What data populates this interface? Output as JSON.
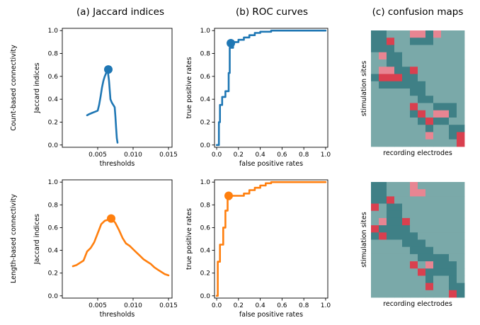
{
  "figure": {
    "column_titles": [
      "(a) Jaccard indices",
      "(b) ROC curves",
      "(c) confusion maps"
    ],
    "row_labels": [
      "Count-based connectivity",
      "Length-based connectivity"
    ],
    "colors": {
      "count": "#1f77b4",
      "length": "#ff7f0e",
      "cm_background": "#7aa9a9",
      "cm_dark": "#3f8086",
      "cm_pink": "#e88592",
      "cm_red": "#d9404f"
    }
  },
  "chart_data": [
    {
      "id": "jaccard-count",
      "type": "line",
      "title": "",
      "xlabel": "thresholds",
      "ylabel": "Jaccard indices",
      "xlim": [
        0.0,
        0.0155
      ],
      "ylim": [
        -0.02,
        1.02
      ],
      "xticks": [
        0.005,
        0.01,
        0.015
      ],
      "xtick_labels": [
        "0.005",
        "0.010",
        "0.015"
      ],
      "yticks": [
        0.0,
        0.2,
        0.4,
        0.6,
        0.8,
        1.0
      ],
      "ytick_labels": [
        "0.0",
        "0.2",
        "0.4",
        "0.6",
        "0.8",
        "1.0"
      ],
      "color": "#1f77b4",
      "series": [
        {
          "x": [
            0.0035,
            0.0038,
            0.0042,
            0.0046,
            0.005,
            0.0052,
            0.0054,
            0.0056,
            0.0058,
            0.006,
            0.0062,
            0.0064,
            0.0066,
            0.0068,
            0.007,
            0.0071,
            0.0072,
            0.0073,
            0.0074,
            0.0075,
            0.0076,
            0.0077,
            0.0078
          ],
          "y": [
            0.26,
            0.27,
            0.28,
            0.29,
            0.3,
            0.35,
            0.42,
            0.5,
            0.56,
            0.6,
            0.63,
            0.66,
            0.56,
            0.4,
            0.37,
            0.36,
            0.35,
            0.34,
            0.33,
            0.25,
            0.15,
            0.06,
            0.02
          ]
        }
      ],
      "highlight": {
        "x": 0.0065,
        "y": 0.66
      }
    },
    {
      "id": "roc-count",
      "type": "line",
      "title": "",
      "xlabel": "false positive rates",
      "ylabel": "true positive rates",
      "xlim": [
        -0.02,
        1.02
      ],
      "ylim": [
        -0.02,
        1.02
      ],
      "xticks": [
        0.0,
        0.2,
        0.4,
        0.6,
        0.8,
        1.0
      ],
      "xtick_labels": [
        "0.0",
        "0.2",
        "0.4",
        "0.6",
        "0.8",
        "1.0"
      ],
      "yticks": [
        0.0,
        0.2,
        0.4,
        0.6,
        0.8,
        1.0
      ],
      "ytick_labels": [
        "0.0",
        "0.2",
        "0.4",
        "0.6",
        "0.8",
        "1.0"
      ],
      "color": "#1f77b4",
      "series": [
        {
          "x": [
            0.0,
            0.02,
            0.02,
            0.03,
            0.03,
            0.05,
            0.05,
            0.08,
            0.08,
            0.11,
            0.11,
            0.12,
            0.12,
            0.15,
            0.15,
            0.2,
            0.2,
            0.25,
            0.25,
            0.3,
            0.3,
            0.35,
            0.35,
            0.4,
            0.4,
            0.5,
            0.5,
            1.0
          ],
          "y": [
            0.0,
            0.0,
            0.2,
            0.2,
            0.35,
            0.35,
            0.42,
            0.42,
            0.47,
            0.47,
            0.63,
            0.63,
            0.85,
            0.85,
            0.9,
            0.9,
            0.92,
            0.92,
            0.94,
            0.94,
            0.96,
            0.96,
            0.98,
            0.98,
            0.99,
            0.99,
            1.0,
            1.0
          ]
        }
      ],
      "highlight": {
        "x": 0.13,
        "y": 0.89
      }
    },
    {
      "id": "jaccard-length",
      "type": "line",
      "title": "",
      "xlabel": "thresholds",
      "ylabel": "Jaccard indices",
      "xlim": [
        0.0,
        0.0155
      ],
      "ylim": [
        -0.02,
        1.02
      ],
      "xticks": [
        0.005,
        0.01,
        0.015
      ],
      "xtick_labels": [
        "0.005",
        "0.010",
        "0.015"
      ],
      "yticks": [
        0.0,
        0.2,
        0.4,
        0.6,
        0.8,
        1.0
      ],
      "ytick_labels": [
        "0.0",
        "0.2",
        "0.4",
        "0.6",
        "0.8",
        "1.0"
      ],
      "color": "#ff7f0e",
      "series": [
        {
          "x": [
            0.0015,
            0.002,
            0.0025,
            0.003,
            0.0035,
            0.004,
            0.0045,
            0.005,
            0.0055,
            0.006,
            0.0065,
            0.007,
            0.0075,
            0.008,
            0.0085,
            0.009,
            0.0095,
            0.01,
            0.0105,
            0.011,
            0.0115,
            0.012,
            0.0125,
            0.013,
            0.0135,
            0.014,
            0.0145,
            0.015
          ],
          "y": [
            0.26,
            0.27,
            0.29,
            0.31,
            0.39,
            0.42,
            0.47,
            0.55,
            0.63,
            0.66,
            0.67,
            0.68,
            0.64,
            0.58,
            0.51,
            0.46,
            0.44,
            0.41,
            0.38,
            0.35,
            0.32,
            0.3,
            0.28,
            0.25,
            0.23,
            0.21,
            0.19,
            0.18
          ]
        }
      ],
      "highlight": {
        "x": 0.0069,
        "y": 0.68
      }
    },
    {
      "id": "roc-length",
      "type": "line",
      "title": "",
      "xlabel": "false positive rates",
      "ylabel": "true positive rates",
      "xlim": [
        -0.02,
        1.02
      ],
      "ylim": [
        -0.02,
        1.02
      ],
      "xticks": [
        0.0,
        0.2,
        0.4,
        0.6,
        0.8,
        1.0
      ],
      "xtick_labels": [
        "0.0",
        "0.2",
        "0.4",
        "0.6",
        "0.8",
        "1.0"
      ],
      "yticks": [
        0.0,
        0.2,
        0.4,
        0.6,
        0.8,
        1.0
      ],
      "ytick_labels": [
        "0.0",
        "0.2",
        "0.4",
        "0.6",
        "0.8",
        "1.0"
      ],
      "color": "#ff7f0e",
      "series": [
        {
          "x": [
            0.0,
            0.01,
            0.01,
            0.03,
            0.03,
            0.06,
            0.06,
            0.08,
            0.08,
            0.1,
            0.1,
            0.12,
            0.12,
            0.25,
            0.25,
            0.3,
            0.3,
            0.35,
            0.35,
            0.4,
            0.4,
            0.45,
            0.45,
            0.5,
            0.5,
            1.0
          ],
          "y": [
            0.0,
            0.0,
            0.3,
            0.3,
            0.45,
            0.45,
            0.6,
            0.6,
            0.75,
            0.75,
            0.85,
            0.85,
            0.88,
            0.88,
            0.9,
            0.9,
            0.93,
            0.93,
            0.95,
            0.95,
            0.97,
            0.97,
            0.99,
            0.99,
            1.0,
            1.0
          ]
        }
      ],
      "highlight": {
        "x": 0.11,
        "y": 0.88
      }
    },
    {
      "id": "confusion-count",
      "type": "heatmap",
      "title": "",
      "xlabel": "recording electrodes",
      "ylabel": "stimulation sites",
      "grid_size": [
        16,
        12
      ],
      "legend": {
        "0": "background",
        "1": "dark",
        "2": "pink",
        "3": "red"
      },
      "cells": [
        [
          1,
          1,
          0,
          0,
          0,
          2,
          2,
          1,
          2,
          0,
          0,
          0
        ],
        [
          1,
          1,
          3,
          0,
          0,
          1,
          1,
          1,
          0,
          0,
          0,
          0
        ],
        [
          1,
          1,
          1,
          0,
          0,
          0,
          0,
          0,
          0,
          0,
          0,
          0
        ],
        [
          0,
          2,
          1,
          1,
          0,
          0,
          0,
          0,
          0,
          0,
          0,
          0
        ],
        [
          0,
          0,
          1,
          1,
          0,
          0,
          0,
          0,
          0,
          0,
          0,
          0
        ],
        [
          0,
          2,
          2,
          1,
          1,
          3,
          0,
          0,
          0,
          0,
          0,
          0
        ],
        [
          1,
          3,
          3,
          3,
          1,
          1,
          0,
          0,
          0,
          0,
          0,
          0
        ],
        [
          0,
          1,
          1,
          1,
          1,
          1,
          1,
          0,
          0,
          0,
          0,
          0
        ],
        [
          0,
          0,
          0,
          0,
          0,
          1,
          1,
          0,
          0,
          0,
          0,
          0
        ],
        [
          0,
          0,
          0,
          0,
          0,
          0,
          1,
          1,
          0,
          0,
          0,
          0
        ],
        [
          0,
          0,
          0,
          0,
          0,
          3,
          0,
          0,
          1,
          1,
          1,
          0
        ],
        [
          0,
          0,
          0,
          0,
          0,
          1,
          3,
          0,
          2,
          2,
          1,
          0
        ],
        [
          0,
          0,
          0,
          0,
          0,
          0,
          1,
          3,
          1,
          1,
          0,
          0
        ],
        [
          0,
          0,
          0,
          0,
          0,
          0,
          0,
          1,
          0,
          0,
          1,
          1
        ],
        [
          0,
          0,
          0,
          0,
          0,
          0,
          0,
          2,
          0,
          0,
          1,
          3
        ],
        [
          0,
          0,
          0,
          0,
          0,
          0,
          0,
          0,
          0,
          0,
          0,
          3
        ]
      ]
    },
    {
      "id": "confusion-length",
      "type": "heatmap",
      "title": "",
      "xlabel": "recording electrodes",
      "ylabel": "stimulation sites",
      "grid_size": [
        16,
        12
      ],
      "legend": {
        "0": "background",
        "1": "dark",
        "2": "pink",
        "3": "red"
      },
      "cells": [
        [
          1,
          1,
          0,
          0,
          0,
          2,
          0,
          0,
          0,
          0,
          0,
          0
        ],
        [
          1,
          1,
          0,
          0,
          0,
          2,
          2,
          0,
          0,
          0,
          0,
          0
        ],
        [
          1,
          1,
          3,
          0,
          0,
          0,
          0,
          0,
          0,
          0,
          0,
          0
        ],
        [
          3,
          0,
          1,
          1,
          0,
          0,
          0,
          0,
          0,
          0,
          0,
          0
        ],
        [
          0,
          0,
          1,
          1,
          0,
          0,
          0,
          0,
          0,
          0,
          0,
          0
        ],
        [
          0,
          2,
          1,
          1,
          3,
          0,
          0,
          0,
          0,
          0,
          0,
          0
        ],
        [
          3,
          1,
          1,
          1,
          1,
          0,
          0,
          0,
          0,
          0,
          0,
          0
        ],
        [
          1,
          3,
          1,
          1,
          1,
          1,
          0,
          0,
          0,
          0,
          0,
          0
        ],
        [
          0,
          0,
          0,
          0,
          1,
          1,
          1,
          0,
          0,
          0,
          0,
          0
        ],
        [
          0,
          0,
          0,
          0,
          0,
          1,
          1,
          1,
          0,
          0,
          0,
          0
        ],
        [
          0,
          0,
          0,
          0,
          0,
          0,
          1,
          1,
          1,
          1,
          0,
          0
        ],
        [
          0,
          0,
          0,
          0,
          0,
          3,
          0,
          2,
          1,
          1,
          1,
          0
        ],
        [
          0,
          0,
          0,
          0,
          0,
          0,
          3,
          1,
          1,
          1,
          1,
          0
        ],
        [
          0,
          0,
          0,
          0,
          0,
          0,
          0,
          1,
          0,
          0,
          1,
          0
        ],
        [
          0,
          0,
          0,
          0,
          0,
          0,
          0,
          3,
          0,
          0,
          1,
          1
        ],
        [
          0,
          0,
          0,
          0,
          0,
          0,
          0,
          0,
          0,
          0,
          3,
          1
        ]
      ]
    }
  ]
}
